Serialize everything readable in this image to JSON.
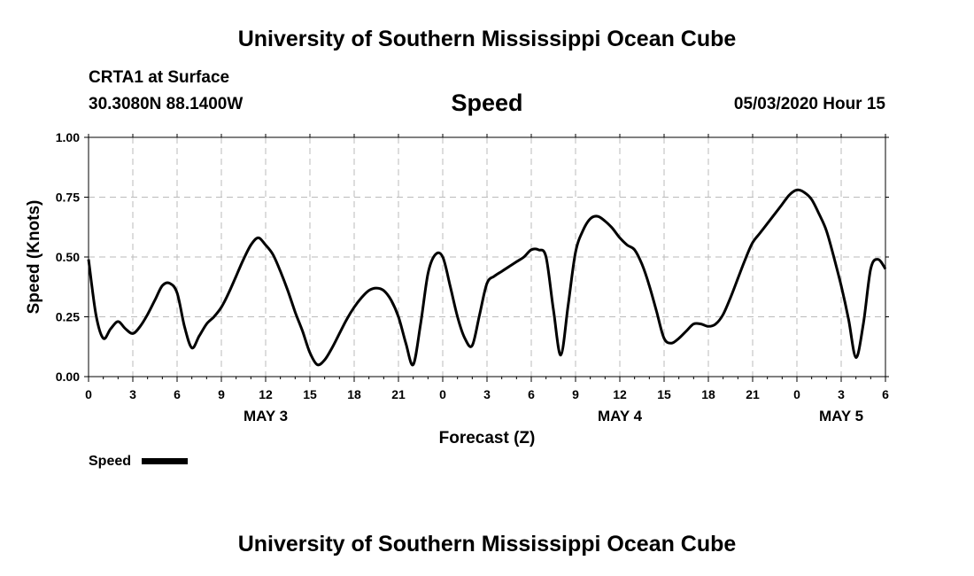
{
  "page": {
    "top_title": "University of Southern Mississippi Ocean Cube",
    "bottom_title": "University of Southern Mississippi Ocean Cube",
    "station": "CRTA1 at Surface",
    "coords": "30.3080N 88.1400W",
    "plot_title": "Speed",
    "timestamp": "05/03/2020 Hour 15"
  },
  "chart_data": {
    "type": "line",
    "title": "Speed",
    "xlabel": "Forecast (Z)",
    "ylabel": "Speed (Knots)",
    "ylim": [
      0,
      1
    ],
    "yticks": [
      "0.00",
      "0.25",
      "0.50",
      "0.75",
      "1.00"
    ],
    "xlim": [
      0,
      54
    ],
    "xticks": [
      {
        "h": 0,
        "label": "0"
      },
      {
        "h": 3,
        "label": "3"
      },
      {
        "h": 6,
        "label": "6"
      },
      {
        "h": 9,
        "label": "9"
      },
      {
        "h": 12,
        "label": "12"
      },
      {
        "h": 15,
        "label": "15"
      },
      {
        "h": 18,
        "label": "18"
      },
      {
        "h": 21,
        "label": "21"
      },
      {
        "h": 24,
        "label": "0"
      },
      {
        "h": 27,
        "label": "3"
      },
      {
        "h": 30,
        "label": "6"
      },
      {
        "h": 33,
        "label": "9"
      },
      {
        "h": 36,
        "label": "12"
      },
      {
        "h": 39,
        "label": "15"
      },
      {
        "h": 42,
        "label": "18"
      },
      {
        "h": 45,
        "label": "21"
      },
      {
        "h": 48,
        "label": "0"
      },
      {
        "h": 51,
        "label": "3"
      },
      {
        "h": 54,
        "label": "6"
      }
    ],
    "day_labels": [
      {
        "h": 12,
        "label": "MAY 3"
      },
      {
        "h": 36,
        "label": "MAY 4"
      },
      {
        "h": 51,
        "label": "MAY 5"
      }
    ],
    "grid": true,
    "legend": {
      "label": "Speed",
      "placement": "bottom-left"
    },
    "series": [
      {
        "name": "Speed",
        "color": "#000000",
        "x": [
          0,
          0.5,
          1,
          1.5,
          2,
          2.5,
          3,
          3.5,
          4,
          4.5,
          5,
          5.5,
          6,
          6.5,
          7,
          7.5,
          8,
          8.5,
          9,
          9.5,
          10,
          10.5,
          11,
          11.5,
          12,
          12.5,
          13,
          13.5,
          14,
          14.5,
          15,
          15.5,
          16,
          16.5,
          17,
          17.5,
          18,
          18.5,
          19,
          19.5,
          20,
          20.5,
          21,
          21.5,
          22,
          22.5,
          23,
          23.5,
          24,
          24.5,
          25,
          25.5,
          26,
          26.5,
          27,
          27.5,
          28,
          28.5,
          29,
          29.5,
          30,
          30.5,
          31,
          31.5,
          32,
          32.5,
          33,
          33.5,
          34,
          34.5,
          35,
          35.5,
          36,
          36.5,
          37,
          37.5,
          38,
          38.5,
          39,
          39.5,
          40,
          40.5,
          41,
          41.5,
          42,
          42.5,
          43,
          43.5,
          44,
          44.5,
          45,
          45.5,
          46,
          46.5,
          47,
          47.5,
          48,
          48.5,
          49,
          49.5,
          50,
          50.5,
          51,
          51.5,
          52,
          52.5,
          53,
          53.5,
          54
        ],
        "y": [
          0.49,
          0.26,
          0.16,
          0.2,
          0.23,
          0.2,
          0.18,
          0.21,
          0.26,
          0.32,
          0.38,
          0.39,
          0.35,
          0.21,
          0.12,
          0.17,
          0.22,
          0.25,
          0.29,
          0.35,
          0.42,
          0.49,
          0.55,
          0.58,
          0.55,
          0.51,
          0.44,
          0.36,
          0.27,
          0.19,
          0.1,
          0.05,
          0.07,
          0.12,
          0.18,
          0.24,
          0.29,
          0.33,
          0.36,
          0.37,
          0.36,
          0.32,
          0.25,
          0.14,
          0.05,
          0.22,
          0.43,
          0.51,
          0.5,
          0.38,
          0.25,
          0.16,
          0.13,
          0.26,
          0.39,
          0.42,
          0.44,
          0.46,
          0.48,
          0.5,
          0.53,
          0.53,
          0.5,
          0.28,
          0.09,
          0.3,
          0.52,
          0.61,
          0.66,
          0.67,
          0.65,
          0.62,
          0.58,
          0.55,
          0.53,
          0.47,
          0.38,
          0.27,
          0.16,
          0.14,
          0.16,
          0.19,
          0.22,
          0.22,
          0.21,
          0.22,
          0.26,
          0.33,
          0.41,
          0.49,
          0.56,
          0.6,
          0.64,
          0.68,
          0.72,
          0.76,
          0.78,
          0.77,
          0.74,
          0.68,
          0.61,
          0.5,
          0.38,
          0.24,
          0.08,
          0.22,
          0.45,
          0.49,
          0.45
        ]
      }
    ]
  }
}
